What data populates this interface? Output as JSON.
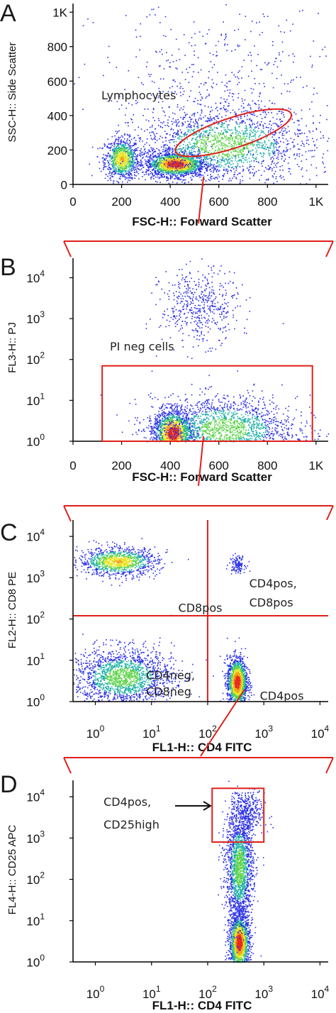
{
  "chart_data": [
    {
      "panel": "A",
      "type": "scatter",
      "xlabel": "FSC-H:: Forward Scatter",
      "ylabel": "SSC-H:: Side Scatter",
      "xscale": "linear",
      "yscale": "linear",
      "xlim": [
        0,
        1050
      ],
      "ylim": [
        0,
        1050
      ],
      "xticks": [
        {
          "v": 0,
          "t": "0"
        },
        {
          "v": 200,
          "t": "200"
        },
        {
          "v": 400,
          "t": "400"
        },
        {
          "v": 600,
          "t": "600"
        },
        {
          "v": 800,
          "t": "800"
        },
        {
          "v": 1000,
          "t": "1K"
        }
      ],
      "yticks": [
        {
          "v": 0,
          "t": "0"
        },
        {
          "v": 200,
          "t": "200"
        },
        {
          "v": 400,
          "t": "400"
        },
        {
          "v": 600,
          "t": "600"
        },
        {
          "v": 800,
          "t": "800"
        },
        {
          "v": 1000,
          "t": "1K"
        }
      ],
      "clusters": [
        {
          "cx": 200,
          "cy": 150,
          "sx": 35,
          "sy": 60,
          "n": 900,
          "peak": "mid"
        },
        {
          "cx": 420,
          "cy": 120,
          "sx": 60,
          "sy": 35,
          "n": 1800,
          "peak": "high"
        },
        {
          "cx": 620,
          "cy": 230,
          "sx": 180,
          "sy": 110,
          "n": 1800,
          "peak": "low"
        },
        {
          "cx": 600,
          "cy": 550,
          "sx": 250,
          "sy": 250,
          "n": 500,
          "peak": "none"
        }
      ],
      "gate": {
        "shape": "ellipse",
        "cx": 660,
        "cy": 300,
        "rx": 250,
        "ry": 88,
        "angle_deg": -18,
        "label": "Lymphocytes"
      }
    },
    {
      "panel": "B",
      "type": "scatter",
      "xlabel": "FSC-H:: Forward Scatter",
      "ylabel": "FL3-H:: PJ",
      "xscale": "linear",
      "yscale": "log",
      "xlim": [
        0,
        1050
      ],
      "ylim": [
        1,
        30000
      ],
      "xticks": [
        {
          "v": 0,
          "t": "0"
        },
        {
          "v": 200,
          "t": "200"
        },
        {
          "v": 400,
          "t": "400"
        },
        {
          "v": 600,
          "t": "600"
        },
        {
          "v": 800,
          "t": "800"
        },
        {
          "v": 1000,
          "t": "1K"
        }
      ],
      "yticks": [
        {
          "v": 1,
          "t": "10",
          "e": "0"
        },
        {
          "v": 10,
          "t": "10",
          "e": "1"
        },
        {
          "v": 100,
          "t": "10",
          "e": "2"
        },
        {
          "v": 1000,
          "t": "10",
          "e": "3"
        },
        {
          "v": 10000,
          "t": "10",
          "e": "4"
        }
      ],
      "clusters": [
        {
          "cx": 410,
          "cy": 1.6,
          "sx": 40,
          "sy": 0.28,
          "n": 1700,
          "peak": "high"
        },
        {
          "cx": 620,
          "cy": 2.0,
          "sx": 150,
          "sy": 0.4,
          "n": 1800,
          "peak": "low"
        },
        {
          "cx": 520,
          "cy": 2000,
          "sx": 80,
          "sy": 0.45,
          "n": 500,
          "peak": "none"
        }
      ],
      "gate": {
        "shape": "rect",
        "x0": 120,
        "x1": 985,
        "y0": 1,
        "y1": 70,
        "label": "PI neg cells"
      }
    },
    {
      "panel": "C",
      "type": "scatter",
      "xlabel": "FL1-H:: CD4 FITC",
      "ylabel": "FL2-H:: CD8 PE",
      "xscale": "log",
      "yscale": "log",
      "xlim": [
        0.4,
        14000
      ],
      "ylim": [
        1,
        25000
      ],
      "xticks": [
        {
          "v": 1,
          "t": "10",
          "e": "0"
        },
        {
          "v": 10,
          "t": "10",
          "e": "1"
        },
        {
          "v": 100,
          "t": "10",
          "e": "2"
        },
        {
          "v": 1000,
          "t": "10",
          "e": "3"
        },
        {
          "v": 10000,
          "t": "10",
          "e": "4"
        }
      ],
      "yticks": [
        {
          "v": 1,
          "t": "10",
          "e": "0"
        },
        {
          "v": 10,
          "t": "10",
          "e": "1"
        },
        {
          "v": 100,
          "t": "10",
          "e": "2"
        },
        {
          "v": 1000,
          "t": "10",
          "e": "3"
        },
        {
          "v": 10000,
          "t": "10",
          "e": "4"
        }
      ],
      "clusters": [
        {
          "cx": 2.5,
          "cy": 2500,
          "sx": 0.35,
          "sy": 0.17,
          "n": 1100,
          "peak": "mid"
        },
        {
          "cx": 3,
          "cy": 4,
          "sx": 0.45,
          "sy": 0.35,
          "n": 1800,
          "peak": "low"
        },
        {
          "cx": 330,
          "cy": 3,
          "sx": 0.09,
          "sy": 0.3,
          "n": 1500,
          "peak": "high"
        },
        {
          "cx": 330,
          "cy": 2200,
          "sx": 0.07,
          "sy": 0.1,
          "n": 120,
          "peak": "none"
        }
      ],
      "quadrant": {
        "x": 100,
        "y": 120
      },
      "labels": [
        {
          "text": "CD8pos",
          "x": 30,
          "y": 150
        },
        {
          "text": "CD4pos,",
          "x": 550,
          "y": 580
        },
        {
          "text": "CD8pos",
          "x": 550,
          "y": 200
        },
        {
          "text": "CD4neg,",
          "x": 8,
          "y": 3.5
        },
        {
          "text": "CD8neg",
          "x": 8,
          "y": 1.4
        },
        {
          "text": "CD4pos",
          "x": 850,
          "y": 1.1
        }
      ]
    },
    {
      "panel": "D",
      "type": "scatter",
      "xlabel": "FL1-H:: CD4 FITC",
      "ylabel": "FL4-H:: CD25 APC",
      "xscale": "log",
      "yscale": "log",
      "xlim": [
        0.4,
        14000
      ],
      "ylim": [
        1,
        25000
      ],
      "xticks": [
        {
          "v": 1,
          "t": "10",
          "e": "0"
        },
        {
          "v": 10,
          "t": "10",
          "e": "1"
        },
        {
          "v": 100,
          "t": "10",
          "e": "2"
        },
        {
          "v": 1000,
          "t": "10",
          "e": "3"
        },
        {
          "v": 10000,
          "t": "10",
          "e": "4"
        }
      ],
      "yticks": [
        {
          "v": 1,
          "t": "10",
          "e": "0"
        },
        {
          "v": 10,
          "t": "10",
          "e": "1"
        },
        {
          "v": 100,
          "t": "10",
          "e": "2"
        },
        {
          "v": 1000,
          "t": "10",
          "e": "3"
        },
        {
          "v": 10000,
          "t": "10",
          "e": "4"
        }
      ],
      "clusters": [
        {
          "cx": 360,
          "cy": 3,
          "sx": 0.09,
          "sy": 0.35,
          "n": 1600,
          "peak": "high"
        },
        {
          "cx": 360,
          "cy": 200,
          "sx": 0.12,
          "sy": 0.7,
          "n": 1800,
          "peak": "low"
        },
        {
          "cx": 500,
          "cy": 4000,
          "sx": 0.15,
          "sy": 0.25,
          "n": 350,
          "peak": "none"
        }
      ],
      "gate": {
        "shape": "rect",
        "x0": 120,
        "x1": 1000,
        "y0": 800,
        "y1": 16000
      },
      "labels": [
        {
          "text": "CD4pos,",
          "x": 1.4,
          "y": 6000
        },
        {
          "text": "CD25high",
          "x": 1.4,
          "y": 1700
        }
      ]
    }
  ]
}
